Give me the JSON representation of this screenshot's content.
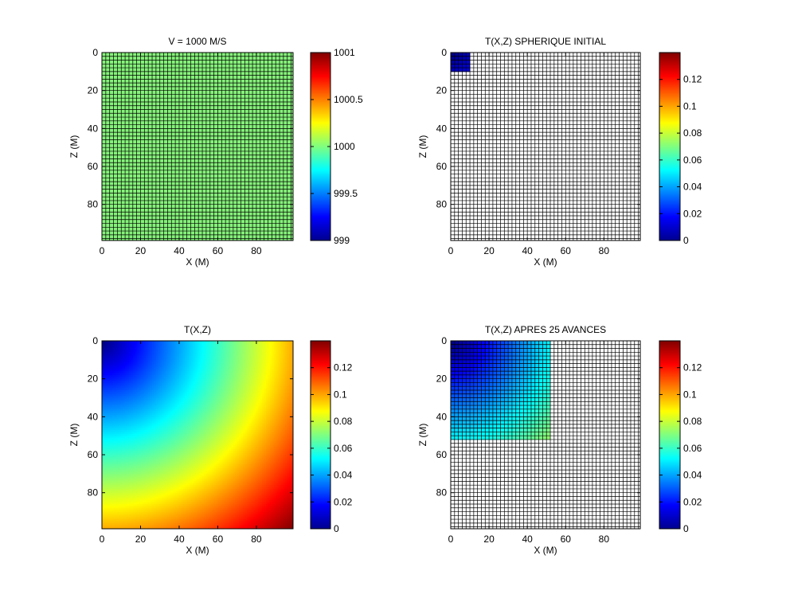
{
  "chart_data": [
    {
      "type": "heatmap",
      "title": "V = 1000 M/S",
      "xlabel": "X (M)",
      "ylabel": "Z (M)",
      "xlim": [
        0,
        99
      ],
      "ylim": [
        0,
        99
      ],
      "y_direction": "reversed",
      "xticks": [
        0,
        20,
        40,
        60,
        80
      ],
      "yticks": [
        0,
        20,
        40,
        60,
        80
      ],
      "grid": true,
      "grid_spacing": 2,
      "field": "constant",
      "value": 1000,
      "fill_color": "#85f27a",
      "colorbar": {
        "min": 999,
        "max": 1001,
        "ticks": [
          999,
          999.5,
          1000,
          1000.5,
          1001
        ]
      }
    },
    {
      "type": "heatmap",
      "title": "T(X,Z) SPHERIQUE INITIAL",
      "xlabel": "X (M)",
      "ylabel": "Z (M)",
      "xlim": [
        0,
        99
      ],
      "ylim": [
        0,
        99
      ],
      "y_direction": "reversed",
      "xticks": [
        0,
        20,
        40,
        60,
        80
      ],
      "yticks": [
        0,
        20,
        40,
        60,
        80
      ],
      "grid": true,
      "grid_spacing": 2,
      "field": "radial",
      "filled_region": {
        "x": [
          0,
          10
        ],
        "z": [
          0,
          10
        ]
      },
      "colorbar": {
        "min": 0,
        "max": 0.14,
        "ticks": [
          0,
          0.02,
          0.04,
          0.06,
          0.08,
          0.1,
          0.12
        ]
      }
    },
    {
      "type": "heatmap",
      "title": "T(X,Z)",
      "xlabel": "X (M)",
      "ylabel": "Z (M)",
      "xlim": [
        0,
        99
      ],
      "ylim": [
        0,
        99
      ],
      "y_direction": "reversed",
      "xticks": [
        0,
        20,
        40,
        60,
        80
      ],
      "yticks": [
        0,
        20,
        40,
        60,
        80
      ],
      "grid": false,
      "field": "radial",
      "value_at_origin": 0.0,
      "value_at_far_corner": 0.14,
      "colorbar": {
        "min": 0,
        "max": 0.14,
        "ticks": [
          0,
          0.02,
          0.04,
          0.06,
          0.08,
          0.1,
          0.12
        ]
      }
    },
    {
      "type": "heatmap",
      "title": "T(X,Z) APRES 25 AVANCES",
      "xlabel": "X (M)",
      "ylabel": "Z (M)",
      "xlim": [
        0,
        99
      ],
      "ylim": [
        0,
        99
      ],
      "y_direction": "reversed",
      "xticks": [
        0,
        20,
        40,
        60,
        80
      ],
      "yticks": [
        0,
        20,
        40,
        60,
        80
      ],
      "grid": true,
      "grid_spacing": 2,
      "field": "radial",
      "filled_region": {
        "x": [
          0,
          52
        ],
        "z": [
          0,
          52
        ]
      },
      "colorbar": {
        "min": 0,
        "max": 0.14,
        "ticks": [
          0,
          0.02,
          0.04,
          0.06,
          0.08,
          0.1,
          0.12
        ]
      }
    }
  ]
}
